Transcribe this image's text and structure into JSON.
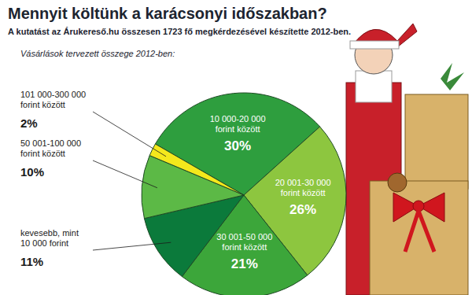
{
  "chart_data": {
    "type": "pie",
    "title": "Mennyit költünk a karácsonyi időszakban?",
    "subtitle": "A kutatást az Árukereső.hu összesen 1723 fő megkérdezésével készítette 2012-ben.",
    "annotations": [
      "Vásárlások tervezett összege 2012-ben:"
    ],
    "categories": [
      "10 000-20 000\nforint között",
      "20 001-30 000\nforint között",
      "30 001-50 000\nforint között",
      "kevesebb, mint\n10 000 forint",
      "50 001-100 000\nforint között",
      "101 000-300 000\nforint között"
    ],
    "values": [
      30,
      26,
      21,
      11,
      10,
      2
    ],
    "value_labels": [
      "30%",
      "26%",
      "21%",
      "11%",
      "10%",
      "2%"
    ],
    "colors": [
      "#2e9e3e",
      "#8dc63f",
      "#3ca63a",
      "#0b7a3b",
      "#5cb946",
      "#f4e81c"
    ],
    "data_labels": true
  }
}
